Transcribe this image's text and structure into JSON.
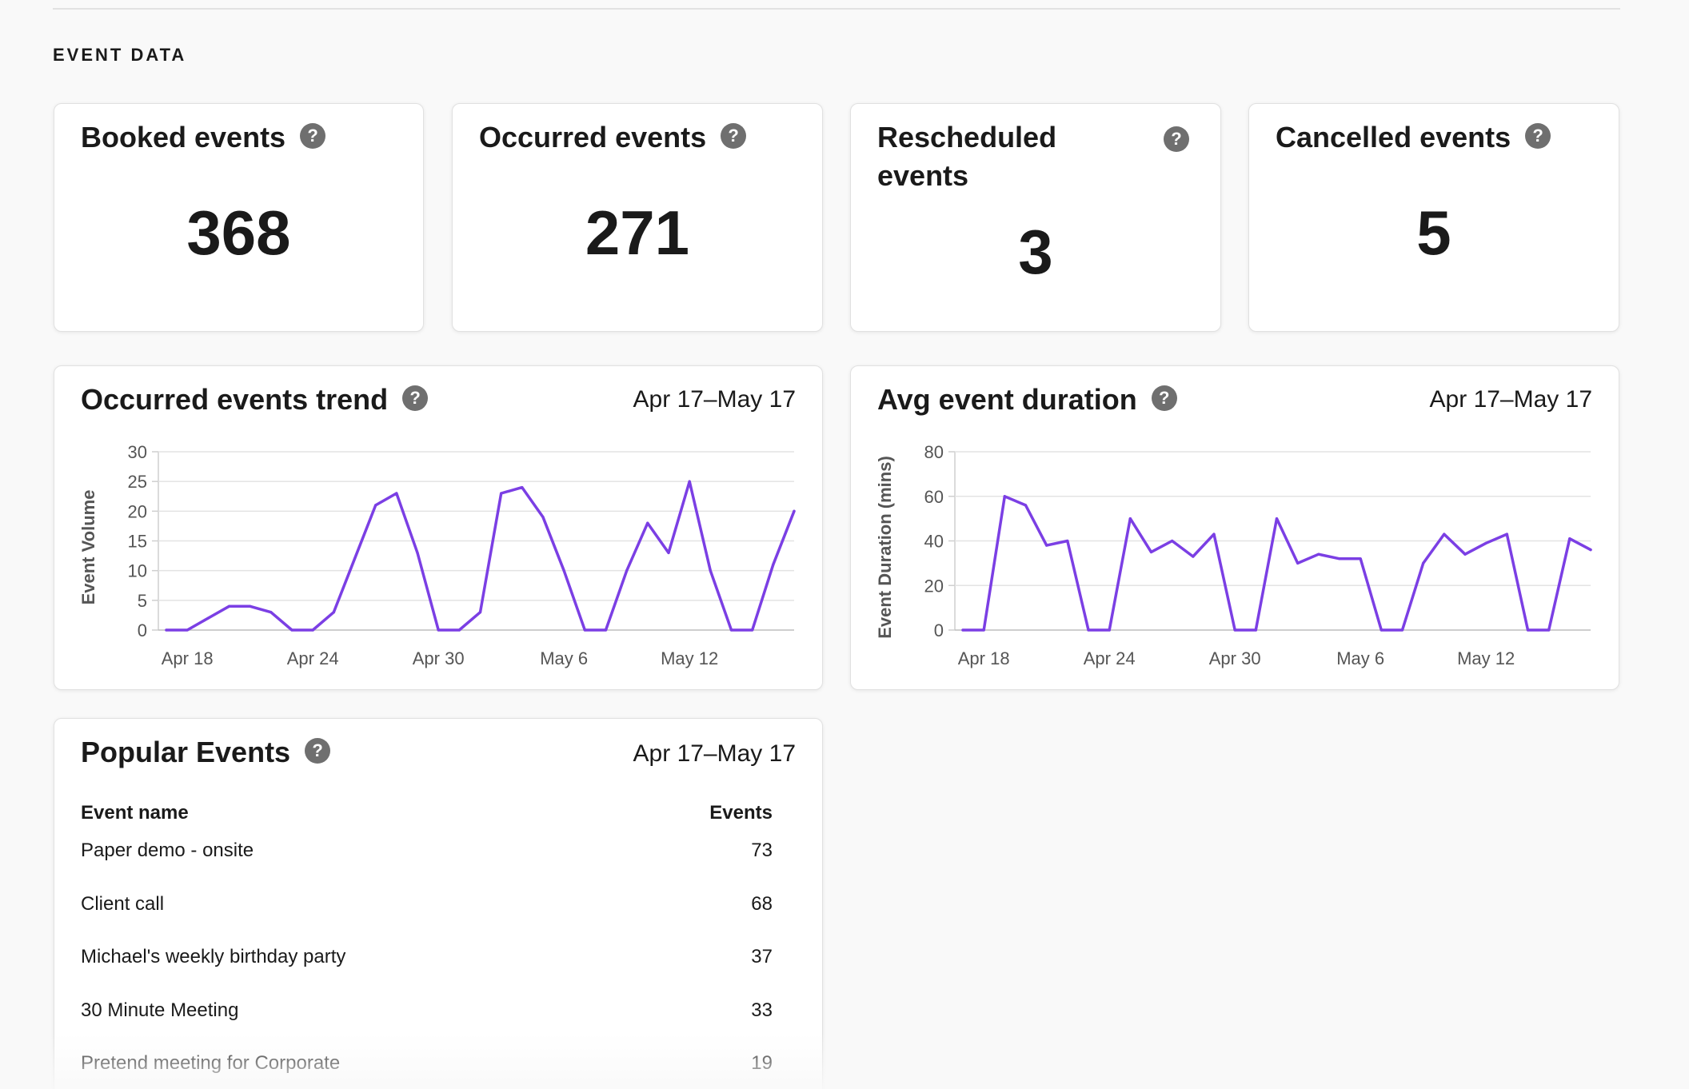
{
  "section": {
    "title": "EVENT DATA"
  },
  "stats": [
    {
      "label": "Booked events",
      "value": "368"
    },
    {
      "label": "Occurred events",
      "value": "271"
    },
    {
      "label": "Rescheduled events",
      "value": "3"
    },
    {
      "label": "Cancelled events",
      "value": "5"
    }
  ],
  "help_icon": {
    "glyph": "?",
    "icon": "question-circle-icon",
    "color": "#6f6f6f"
  },
  "trend_panel": {
    "title": "Occurred events trend",
    "date_range": "Apr 17–May 17"
  },
  "duration_panel": {
    "title": "Avg event duration",
    "date_range": "Apr 17–May 17"
  },
  "popular_panel": {
    "title": "Popular Events",
    "date_range": "Apr 17–May 17",
    "columns": [
      "Event name",
      "Events"
    ],
    "rows": [
      {
        "name": "Paper demo - onsite",
        "count": "73"
      },
      {
        "name": "Client call",
        "count": "68"
      },
      {
        "name": "Michael's weekly birthday party",
        "count": "37"
      },
      {
        "name": "30 Minute Meeting",
        "count": "33"
      },
      {
        "name": "Pretend meeting for Corporate",
        "count": "19"
      }
    ]
  },
  "accent_color": "#7b3fe4",
  "chart_data": [
    {
      "type": "line",
      "ylabel": "Event Volume",
      "xlabel": "",
      "ylim": [
        0,
        30
      ],
      "yticks": [
        "0",
        "5",
        "10",
        "15",
        "20",
        "25",
        "30"
      ],
      "x_tick_labels": [
        "Apr 18",
        "Apr 24",
        "Apr 30",
        "May 6",
        "May 12"
      ],
      "grid": true,
      "x": [
        "Apr 17",
        "Apr 18",
        "Apr 19",
        "Apr 20",
        "Apr 21",
        "Apr 22",
        "Apr 23",
        "Apr 24",
        "Apr 25",
        "Apr 26",
        "Apr 27",
        "Apr 28",
        "Apr 29",
        "Apr 30",
        "May 1",
        "May 2",
        "May 3",
        "May 4",
        "May 5",
        "May 6",
        "May 7",
        "May 8",
        "May 9",
        "May 10",
        "May 11",
        "May 12",
        "May 13",
        "May 14",
        "May 15",
        "May 16",
        "May 17"
      ],
      "series": [
        {
          "values": [
            0,
            0,
            2,
            4,
            4,
            3,
            0,
            0,
            3,
            12,
            21,
            23,
            13,
            0,
            0,
            3,
            23,
            24,
            19,
            10,
            0,
            0,
            10,
            18,
            13,
            25,
            10,
            0,
            0,
            11,
            20
          ]
        }
      ]
    },
    {
      "type": "line",
      "ylabel": "Event Duration (mins)",
      "xlabel": "",
      "ylim": [
        0,
        80
      ],
      "yticks": [
        "0",
        "20",
        "40",
        "60",
        "80"
      ],
      "x_tick_labels": [
        "Apr 18",
        "Apr 24",
        "Apr 30",
        "May 6",
        "May 12"
      ],
      "grid": true,
      "x": [
        "Apr 17",
        "Apr 18",
        "Apr 19",
        "Apr 20",
        "Apr 21",
        "Apr 22",
        "Apr 23",
        "Apr 24",
        "Apr 25",
        "Apr 26",
        "Apr 27",
        "Apr 28",
        "Apr 29",
        "Apr 30",
        "May 1",
        "May 2",
        "May 3",
        "May 4",
        "May 5",
        "May 6",
        "May 7",
        "May 8",
        "May 9",
        "May 10",
        "May 11",
        "May 12",
        "May 13",
        "May 14",
        "May 15",
        "May 16",
        "May 17"
      ],
      "series": [
        {
          "values": [
            0,
            0,
            60,
            56,
            38,
            40,
            0,
            0,
            50,
            35,
            40,
            33,
            43,
            0,
            0,
            50,
            30,
            34,
            32,
            32,
            0,
            0,
            30,
            43,
            34,
            39,
            43,
            0,
            0,
            41,
            36
          ]
        }
      ]
    }
  ]
}
